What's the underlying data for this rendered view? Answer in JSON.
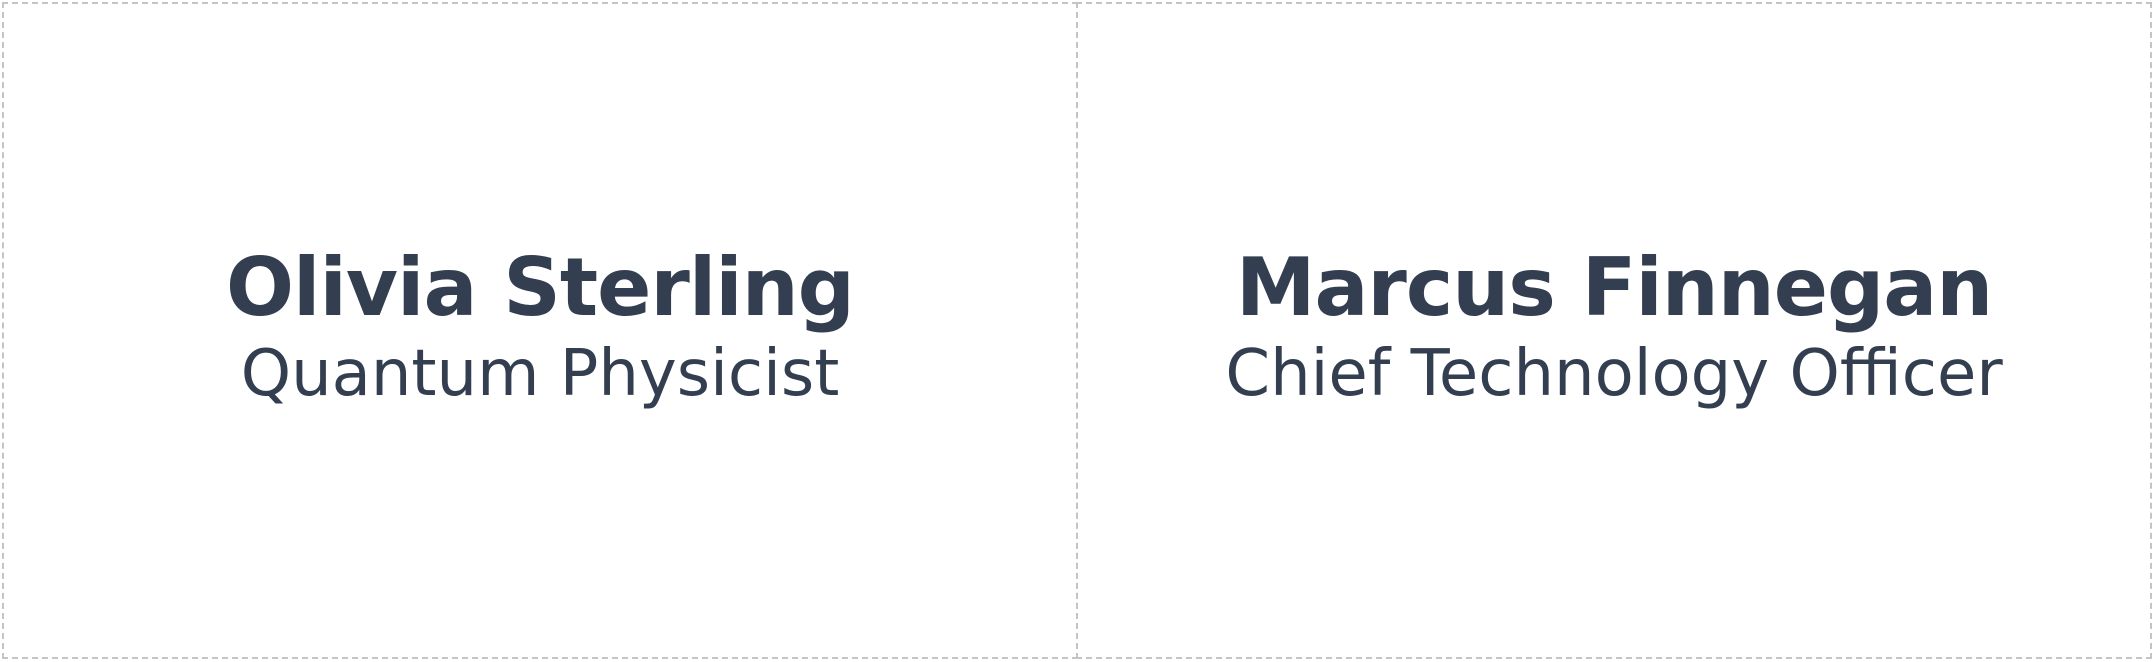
{
  "cards": [
    {
      "name": "Olivia Sterling",
      "title": "Quantum Physicist"
    },
    {
      "name": "Marcus Finnegan",
      "title": "Chief Technology Officer"
    }
  ],
  "colors": {
    "text": "#333f50",
    "border": "#c4c4c4",
    "background": "#ffffff"
  }
}
